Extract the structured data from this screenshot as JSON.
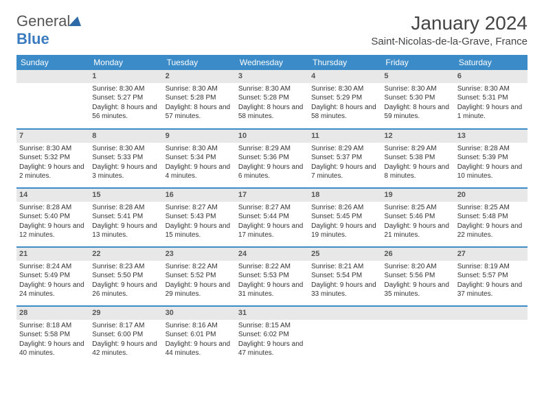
{
  "logo": {
    "text_a": "General",
    "text_b": "Blue"
  },
  "title": "January 2024",
  "location": "Saint-Nicolas-de-la-Grave, France",
  "colors": {
    "header_bg": "#3b8bc9",
    "header_text": "#ffffff",
    "daynum_bg": "#e8e8e8",
    "row_border": "#3b8bc9",
    "logo_gray": "#555555",
    "logo_blue": "#3b7bbf"
  },
  "weekdays": [
    "Sunday",
    "Monday",
    "Tuesday",
    "Wednesday",
    "Thursday",
    "Friday",
    "Saturday"
  ],
  "weeks": [
    [
      null,
      {
        "n": "1",
        "sr": "8:30 AM",
        "ss": "5:27 PM",
        "dl": "8 hours and 56 minutes."
      },
      {
        "n": "2",
        "sr": "8:30 AM",
        "ss": "5:28 PM",
        "dl": "8 hours and 57 minutes."
      },
      {
        "n": "3",
        "sr": "8:30 AM",
        "ss": "5:28 PM",
        "dl": "8 hours and 58 minutes."
      },
      {
        "n": "4",
        "sr": "8:30 AM",
        "ss": "5:29 PM",
        "dl": "8 hours and 58 minutes."
      },
      {
        "n": "5",
        "sr": "8:30 AM",
        "ss": "5:30 PM",
        "dl": "8 hours and 59 minutes."
      },
      {
        "n": "6",
        "sr": "8:30 AM",
        "ss": "5:31 PM",
        "dl": "9 hours and 1 minute."
      }
    ],
    [
      {
        "n": "7",
        "sr": "8:30 AM",
        "ss": "5:32 PM",
        "dl": "9 hours and 2 minutes."
      },
      {
        "n": "8",
        "sr": "8:30 AM",
        "ss": "5:33 PM",
        "dl": "9 hours and 3 minutes."
      },
      {
        "n": "9",
        "sr": "8:30 AM",
        "ss": "5:34 PM",
        "dl": "9 hours and 4 minutes."
      },
      {
        "n": "10",
        "sr": "8:29 AM",
        "ss": "5:36 PM",
        "dl": "9 hours and 6 minutes."
      },
      {
        "n": "11",
        "sr": "8:29 AM",
        "ss": "5:37 PM",
        "dl": "9 hours and 7 minutes."
      },
      {
        "n": "12",
        "sr": "8:29 AM",
        "ss": "5:38 PM",
        "dl": "9 hours and 8 minutes."
      },
      {
        "n": "13",
        "sr": "8:28 AM",
        "ss": "5:39 PM",
        "dl": "9 hours and 10 minutes."
      }
    ],
    [
      {
        "n": "14",
        "sr": "8:28 AM",
        "ss": "5:40 PM",
        "dl": "9 hours and 12 minutes."
      },
      {
        "n": "15",
        "sr": "8:28 AM",
        "ss": "5:41 PM",
        "dl": "9 hours and 13 minutes."
      },
      {
        "n": "16",
        "sr": "8:27 AM",
        "ss": "5:43 PM",
        "dl": "9 hours and 15 minutes."
      },
      {
        "n": "17",
        "sr": "8:27 AM",
        "ss": "5:44 PM",
        "dl": "9 hours and 17 minutes."
      },
      {
        "n": "18",
        "sr": "8:26 AM",
        "ss": "5:45 PM",
        "dl": "9 hours and 19 minutes."
      },
      {
        "n": "19",
        "sr": "8:25 AM",
        "ss": "5:46 PM",
        "dl": "9 hours and 21 minutes."
      },
      {
        "n": "20",
        "sr": "8:25 AM",
        "ss": "5:48 PM",
        "dl": "9 hours and 22 minutes."
      }
    ],
    [
      {
        "n": "21",
        "sr": "8:24 AM",
        "ss": "5:49 PM",
        "dl": "9 hours and 24 minutes."
      },
      {
        "n": "22",
        "sr": "8:23 AM",
        "ss": "5:50 PM",
        "dl": "9 hours and 26 minutes."
      },
      {
        "n": "23",
        "sr": "8:22 AM",
        "ss": "5:52 PM",
        "dl": "9 hours and 29 minutes."
      },
      {
        "n": "24",
        "sr": "8:22 AM",
        "ss": "5:53 PM",
        "dl": "9 hours and 31 minutes."
      },
      {
        "n": "25",
        "sr": "8:21 AM",
        "ss": "5:54 PM",
        "dl": "9 hours and 33 minutes."
      },
      {
        "n": "26",
        "sr": "8:20 AM",
        "ss": "5:56 PM",
        "dl": "9 hours and 35 minutes."
      },
      {
        "n": "27",
        "sr": "8:19 AM",
        "ss": "5:57 PM",
        "dl": "9 hours and 37 minutes."
      }
    ],
    [
      {
        "n": "28",
        "sr": "8:18 AM",
        "ss": "5:58 PM",
        "dl": "9 hours and 40 minutes."
      },
      {
        "n": "29",
        "sr": "8:17 AM",
        "ss": "6:00 PM",
        "dl": "9 hours and 42 minutes."
      },
      {
        "n": "30",
        "sr": "8:16 AM",
        "ss": "6:01 PM",
        "dl": "9 hours and 44 minutes."
      },
      {
        "n": "31",
        "sr": "8:15 AM",
        "ss": "6:02 PM",
        "dl": "9 hours and 47 minutes."
      },
      null,
      null,
      null
    ]
  ],
  "labels": {
    "sunrise": "Sunrise:",
    "sunset": "Sunset:",
    "daylight": "Daylight:"
  }
}
